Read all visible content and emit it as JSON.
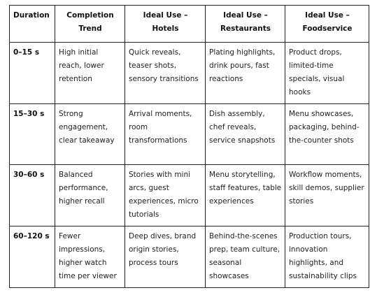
{
  "table": {
    "columns": [
      "Duration",
      "Completion Trend",
      "Ideal Use – Hotels",
      "Ideal Use – Restaurants",
      "Ideal Use – Foodservice"
    ],
    "rows": [
      [
        "0–15 s",
        "High initial reach, lower retention",
        "Quick reveals, teaser shots, sensory transitions",
        "Plating highlights, drink pours, fast reactions",
        "Product drops, limited-time specials, visual hooks"
      ],
      [
        "15–30 s",
        "Strong engagement, clear takeaway",
        "Arrival moments, room transformations",
        "Dish assembly, chef reveals, service snapshots",
        "Menu showcases, packaging, behind-the-counter shots"
      ],
      [
        "30–60 s",
        "Balanced performance, higher recall",
        "Stories with mini arcs, guest experiences, micro tutorials",
        "Menu storytelling, staff features, table experiences",
        "Workflow moments, skill demos, supplier stories"
      ],
      [
        "60–120 s",
        "Fewer impressions, higher watch time per viewer",
        "Deep dives, brand origin stories, process tours",
        "Behind-the-scenes prep, team culture, seasonal showcases",
        "Production tours, innovation highlights, and sustainability clips"
      ]
    ]
  }
}
